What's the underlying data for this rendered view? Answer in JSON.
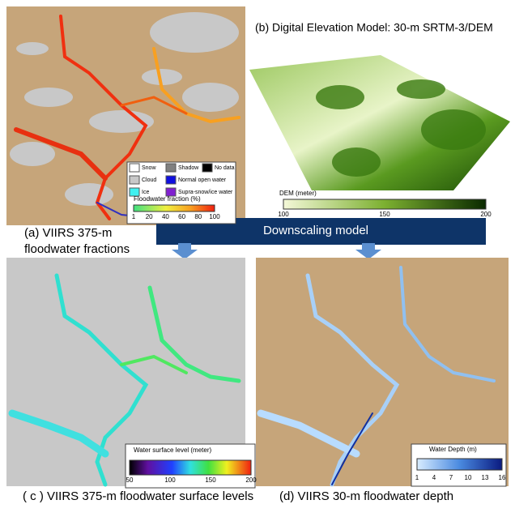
{
  "panel_a": {
    "caption_lines": [
      "(a) VIIRS 375-m",
      "floodwater fractions"
    ],
    "legend": [
      {
        "label": "Snow",
        "color": "#ffffff"
      },
      {
        "label": "Shadow",
        "color": "#808080"
      },
      {
        "label": "No data",
        "color": "#000000"
      },
      {
        "label": "Cloud",
        "color": "#c8c8c8"
      },
      {
        "label": "Normal open water",
        "color": "#1010e0"
      },
      {
        "label": "Ice",
        "color": "#40f0f0"
      },
      {
        "label": "Supra-snow/ice water",
        "color": "#8020d0"
      }
    ],
    "colorbar_title": "Floodwater fraction (%)",
    "colorbar_ticks": [
      1,
      20,
      40,
      60,
      80,
      100
    ]
  },
  "panel_b": {
    "title": "(b) Digital Elevation Model: 30-m SRTM-3/DEM",
    "colorbar_title": "DEM (meter)",
    "colorbar_ticks": [
      100,
      150,
      200
    ]
  },
  "banner": "Downscaling model",
  "panel_c": {
    "caption": "( c ) VIIRS 375-m floodwater surface levels",
    "colorbar_title": "Water surface level (meter)",
    "colorbar_ticks": [
      50,
      100,
      150,
      200
    ]
  },
  "panel_d": {
    "caption": "(d) VIIRS 30-m floodwater depth",
    "colorbar_title": "Water Depth (m)",
    "colorbar_ticks": [
      1,
      4,
      7,
      10,
      13,
      16
    ]
  }
}
